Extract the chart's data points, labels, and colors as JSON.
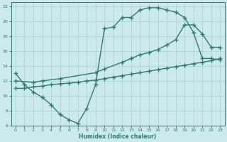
{
  "line1_x": [
    0,
    1,
    2,
    3,
    4,
    5,
    6,
    7,
    8,
    9,
    10,
    11,
    12,
    13,
    14,
    15,
    16,
    17,
    18,
    19,
    20,
    21,
    22,
    23
  ],
  "line1_y": [
    13.0,
    11.5,
    10.5,
    9.8,
    8.8,
    7.5,
    6.8,
    6.3,
    8.3,
    11.5,
    19.0,
    19.2,
    20.5,
    20.5,
    21.5,
    21.8,
    21.8,
    21.5,
    21.2,
    20.5,
    18.5,
    15.0,
    15.0,
    14.8
  ],
  "line2_x": [
    0,
    1,
    2,
    3,
    4,
    5,
    6,
    7,
    8,
    9,
    10,
    11,
    12,
    13,
    14,
    15,
    16,
    17,
    18,
    19,
    20,
    21,
    22,
    23
  ],
  "line2_y": [
    11.0,
    11.0,
    11.2,
    11.3,
    11.5,
    11.6,
    11.7,
    11.8,
    12.0,
    12.1,
    12.3,
    12.5,
    12.7,
    12.9,
    13.1,
    13.3,
    13.5,
    13.7,
    13.9,
    14.1,
    14.3,
    14.5,
    14.7,
    15.0
  ],
  "line3_x": [
    0,
    2,
    3,
    5,
    9,
    10,
    12,
    13,
    14,
    15,
    16,
    17,
    18,
    19,
    20,
    21,
    22,
    23
  ],
  "line3_y": [
    12.0,
    11.8,
    12.0,
    12.3,
    13.1,
    13.6,
    14.5,
    15.0,
    15.5,
    15.8,
    16.2,
    16.8,
    17.5,
    19.5,
    19.5,
    18.3,
    16.5,
    16.5
  ],
  "color": "#2e7d6e",
  "bg_color": "#cce9ec",
  "grid_color": "#b0d8dc",
  "xlabel": "Humidex (Indice chaleur)",
  "xlim": [
    -0.5,
    23.5
  ],
  "ylim": [
    6,
    22.5
  ],
  "yticks": [
    6,
    8,
    10,
    12,
    14,
    16,
    18,
    20,
    22
  ],
  "xticks": [
    0,
    1,
    2,
    3,
    4,
    5,
    6,
    7,
    8,
    9,
    10,
    11,
    12,
    13,
    14,
    15,
    16,
    17,
    18,
    19,
    20,
    21,
    22,
    23
  ],
  "marker": "+",
  "markersize": 4,
  "linewidth": 1.0
}
